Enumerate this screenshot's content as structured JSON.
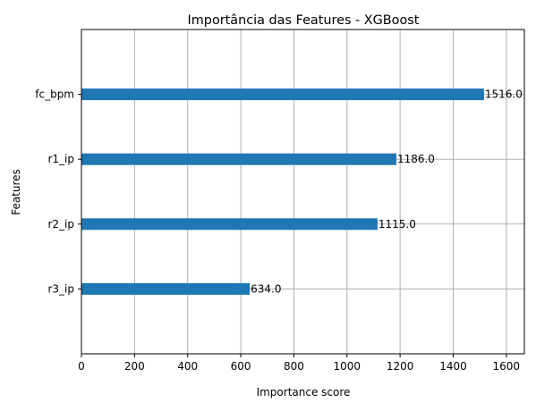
{
  "chart_data": {
    "type": "bar",
    "orientation": "horizontal",
    "title": "Importância das Features - XGBoost",
    "xlabel": "Importance score",
    "ylabel": "Features",
    "categories": [
      "fc_bpm",
      "r1_ip",
      "r2_ip",
      "r3_ip"
    ],
    "values": [
      1516.0,
      1186.0,
      1115.0,
      634.0
    ],
    "value_labels": [
      "1516.0",
      "1186.0",
      "1115.0",
      "634.0"
    ],
    "xlim": [
      0,
      1668
    ],
    "xticks": [
      0,
      200,
      400,
      600,
      800,
      1000,
      1200,
      1400,
      1600
    ],
    "xtick_labels": [
      "0",
      "200",
      "400",
      "600",
      "800",
      "1000",
      "1200",
      "1400",
      "1600"
    ],
    "grid": true,
    "bar_color": "#1f77b4",
    "grid_color": "#b0b0b0"
  }
}
